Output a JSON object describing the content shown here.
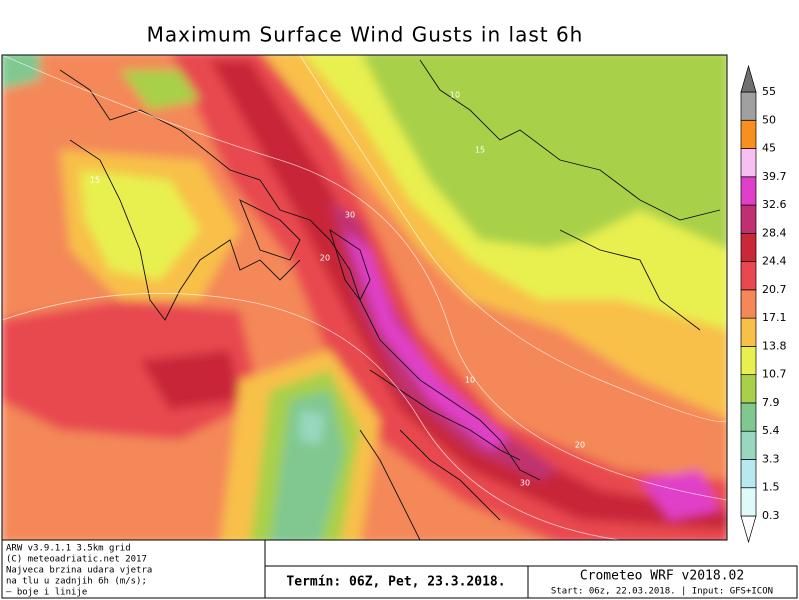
{
  "header": {
    "title": "Maximum Surface Wind Gusts in last 6h"
  },
  "colorbar": {
    "labels": [
      0.3,
      1.5,
      3.3,
      5.4,
      7.9,
      10.7,
      13.8,
      17.1,
      20.7,
      24.4,
      28.4,
      32.6,
      39.7,
      45,
      50,
      55
    ],
    "colors": [
      "#ffffff",
      "#e0fafa",
      "#b8e8f0",
      "#98d8c0",
      "#80c890",
      "#a8d048",
      "#e8f050",
      "#f8c048",
      "#f48858",
      "#e84850",
      "#c82838",
      "#c03070",
      "#e040c8",
      "#f8c0f0",
      "#f89020",
      "#a0a0a0",
      "#707070"
    ]
  },
  "map": {
    "contour_labels": [
      "10",
      "15",
      "20",
      "30",
      "20",
      "30",
      "15",
      "10"
    ]
  },
  "footer": {
    "info": [
      "ARW v3.9.1.1 3.5km grid",
      "(C) meteoadriatic.net 2017",
      "Najveca brzina udara vjetra",
      "na tlu u zadnjih 6h (m/s);",
      "– boje i linije"
    ],
    "valid_time": "Termín: 06Z, Pet, 23.3.2018.",
    "model": "Crometeo WRF v2018.02",
    "start": "Start: 06z, 22.03.2018. | Input: GFS+ICON"
  }
}
